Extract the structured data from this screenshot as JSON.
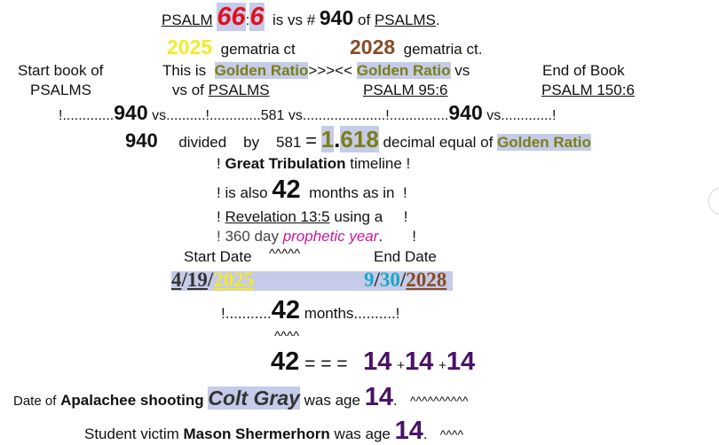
{
  "l1": {
    "psalm": "PSALM",
    "n66": "66",
    "colon": ":",
    "n6": "6",
    "isvs": "is vs #",
    "n940": "940",
    "of": "of",
    "psalms": "PSALMS",
    "period": "."
  },
  "l2": {
    "y2025": "2025",
    "gct1": "gematria ct",
    "y2028": "2028",
    "gct2": "gematria ct."
  },
  "l3": {
    "startbook": "Start book of",
    "thisis": "This is",
    "gr1": "Golden Ratio",
    "arrows": ">>><<",
    "gr2": "Golden Ratio",
    "vs": "vs",
    "endbook": "End of Book"
  },
  "l4": {
    "psalms": "PSALMS",
    "vsof": "vs of",
    "psalms2": "PSALMS",
    "p956": "PSALM 95:6",
    "p1506": "PSALM 150:6"
  },
  "l5": {
    "a": "!.............",
    "n1": "940",
    "b": "vs..........!.............581 vs.....................!...............",
    "n2": "940",
    "c": "vs.............!"
  },
  "l6": {
    "n940": "940",
    "div": "divided",
    "by": "by",
    "n581": "581",
    "eq": "=",
    "one": "1",
    "dot": ".",
    "frac": "618",
    "dec": "decimal equal of",
    "gr": "Golden Ratio"
  },
  "l7": {
    "a": "!",
    "gt": "Great Tribulation",
    "b": "timeline !"
  },
  "l8": {
    "a": "! is also",
    "n42": "42",
    "b": "months as in",
    "c": "!"
  },
  "l9": {
    "a": "!",
    "rev": "Revelation 13:5",
    "b": "using a",
    "c": "!"
  },
  "l10": {
    "a": "! 360 day",
    "py": "prophetic year",
    "b": ".",
    "c": "!"
  },
  "l11": {
    "start": "Start Date",
    "carets": "^^^^^",
    "end": "End Date"
  },
  "l12": {
    "m1": "4",
    "s1": "/",
    "d1": "19",
    "s2": "/",
    "y1": "2025",
    "m2": "9",
    "s3": "/",
    "d2": "30",
    "s4": "/",
    "y2": "2028"
  },
  "l13": {
    "a": "!...........",
    "n42": "42",
    "b": "months..........!"
  },
  "l14": {
    "carets": "^^^^"
  },
  "l15": {
    "n42": "42",
    "eqs": "= = =",
    "a14": "14",
    "p1": "+",
    "b14": "14",
    "p2": "+",
    "c14": "14"
  },
  "l16": {
    "dateof": "Date of",
    "shoot": "Apalachee shooting",
    "colt": "Colt Gray",
    "age": "was age",
    "n14": "14",
    "dot": ".",
    "carets": "^^^^^^^^^^"
  },
  "l17": {
    "victim": "Student victim",
    "mason": "Mason Shermerhorn",
    "age": "was age",
    "n14": "14",
    "dot": ".",
    "carets": "^^^^"
  }
}
